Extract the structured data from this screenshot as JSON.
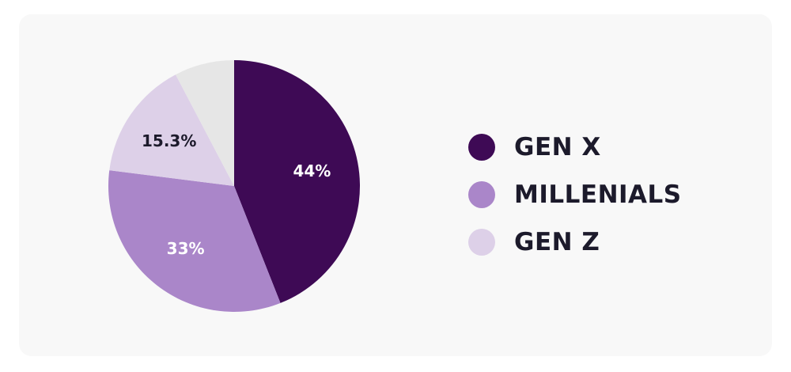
{
  "chart_data": {
    "type": "pie",
    "title": "",
    "slices": [
      {
        "label": "GEN X",
        "value": 44,
        "display": "44%",
        "color": "#3e0a55",
        "label_color": "#ffffff"
      },
      {
        "label": "MILLENIALS",
        "value": 33,
        "display": "33%",
        "color": "#aa86c9",
        "label_color": "#ffffff"
      },
      {
        "label": "GEN Z",
        "value": 15.3,
        "display": "15.3%",
        "color": "#ddd0e8",
        "label_color": "#1c1a2b"
      },
      {
        "label": "",
        "value": 7.7,
        "display": "",
        "color": "#e6e6e6",
        "label_color": "#1c1a2b"
      }
    ],
    "start_angle": "top",
    "direction": "clockwise",
    "legend_placement": "right"
  },
  "legend": {
    "items": [
      {
        "label": "GEN X",
        "color": "#3e0a55"
      },
      {
        "label": "MILLENIALS",
        "color": "#aa86c9"
      },
      {
        "label": "GEN Z",
        "color": "#ddd0e8"
      }
    ]
  }
}
